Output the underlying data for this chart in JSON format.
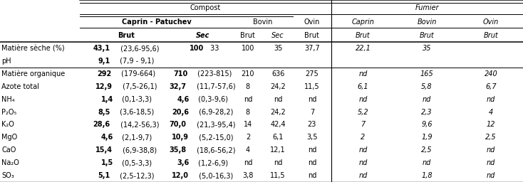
{
  "row_labels": [
    "Matière sèche (%)",
    "pH",
    "Matière organique",
    "Azote total",
    "NH₄",
    "P₂O₅",
    "K₂O",
    "MgO",
    "CaO",
    "Na₂O",
    "SO₃"
  ],
  "data": [
    [
      "43,1",
      "(23,6-95,6)",
      "100",
      "33",
      "100",
      "35",
      "37,7",
      "22,1",
      "35"
    ],
    [
      "9,1",
      "(7,9 - 9,1)",
      "",
      "",
      "",
      "",
      "",
      "",
      ""
    ],
    [
      "292",
      "(179-664)",
      "710",
      "(223-815)",
      "210",
      "636",
      "275",
      "nd",
      "165",
      "240"
    ],
    [
      "12,9",
      "(7,5-26,1)",
      "32,7",
      "(11,7-57,6)",
      "8",
      "24,2",
      "11,5",
      "6,1",
      "5,8",
      "6,7"
    ],
    [
      "1,4",
      "(0,1-3,3)",
      "4,6",
      "(0,3-9,6)",
      "nd",
      "nd",
      "nd",
      "nd",
      "nd",
      "nd"
    ],
    [
      "8,5",
      "(3,6-18,5)",
      "20,6",
      "(6,9-28,2)",
      "8",
      "24,2",
      "7",
      "5,2",
      "2,3",
      "4"
    ],
    [
      "28,6",
      "(14,2-56,3)",
      "70,0",
      "(21,3-95,4)",
      "14",
      "42,4",
      "23",
      "7",
      "9,6",
      "12"
    ],
    [
      "4,6",
      "(2,1-9,7)",
      "10,9",
      "(5,2-15,0)",
      "2",
      "6,1",
      "3,5",
      "2",
      "1,9",
      "2,5"
    ],
    [
      "15,4",
      "(6,9-38,8)",
      "35,8",
      "(18,6-56,2)",
      "4",
      "12,1",
      "nd",
      "nd",
      "2,5",
      "nd"
    ],
    [
      "1,5",
      "(0,5-3,3)",
      "3,6",
      "(1,2-6,9)",
      "nd",
      "nd",
      "nd",
      "nd",
      "nd",
      "nd"
    ],
    [
      "5,1",
      "(2,5-12,3)",
      "12,0",
      "(5,0-16,3)",
      "3,8",
      "11,5",
      "nd",
      "nd",
      "1,8",
      "nd"
    ]
  ],
  "font_size": 7.0,
  "font_family": "DejaVu Sans"
}
